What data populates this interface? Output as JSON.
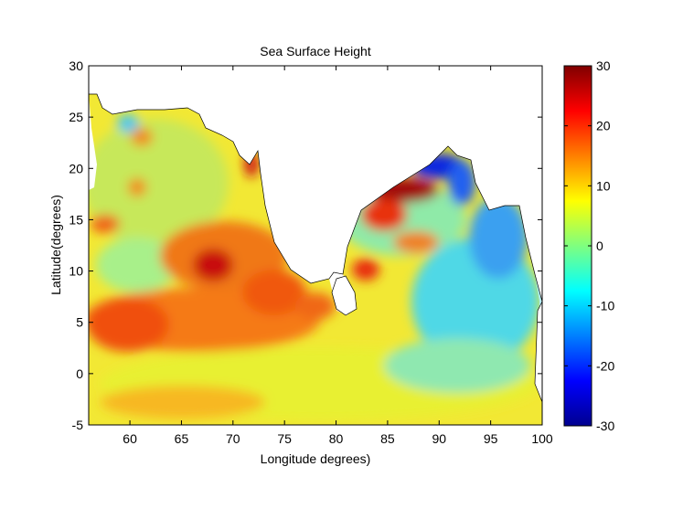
{
  "chart_data": {
    "type": "heatmap",
    "title": "Sea Surface Height",
    "xlabel": "Longitude degrees)",
    "ylabel": "Latitude(degrees)",
    "xlim": [
      56,
      100
    ],
    "ylim": [
      -5,
      30
    ],
    "xticks": [
      60,
      65,
      70,
      75,
      80,
      85,
      90,
      95,
      100
    ],
    "yticks": [
      -5,
      0,
      5,
      10,
      15,
      20,
      25,
      30
    ],
    "colorbar": {
      "colormap": "jet",
      "range": [
        -30,
        30
      ],
      "ticks": [
        -30,
        -20,
        -10,
        0,
        10,
        20,
        30
      ]
    },
    "grid": false,
    "field_features": [
      {
        "lon": 68,
        "lat": 11,
        "value": 24
      },
      {
        "lon": 72.5,
        "lat": 20,
        "value": 26
      },
      {
        "lon": 87,
        "lat": 18,
        "value": 29
      },
      {
        "lon": 82,
        "lat": 10,
        "value": 20
      },
      {
        "lon": 75,
        "lat": 8,
        "value": 16
      },
      {
        "lon": 88,
        "lat": 22,
        "value": -25
      },
      {
        "lon": 95,
        "lat": 14,
        "value": -15
      },
      {
        "lon": 60,
        "lat": 24,
        "value": -8
      },
      {
        "lon": 95,
        "lat": 5,
        "value": -6
      },
      {
        "lon": 90,
        "lat": 2,
        "value": 2
      },
      {
        "lon": 60,
        "lat": 5,
        "value": 14
      }
    ]
  }
}
